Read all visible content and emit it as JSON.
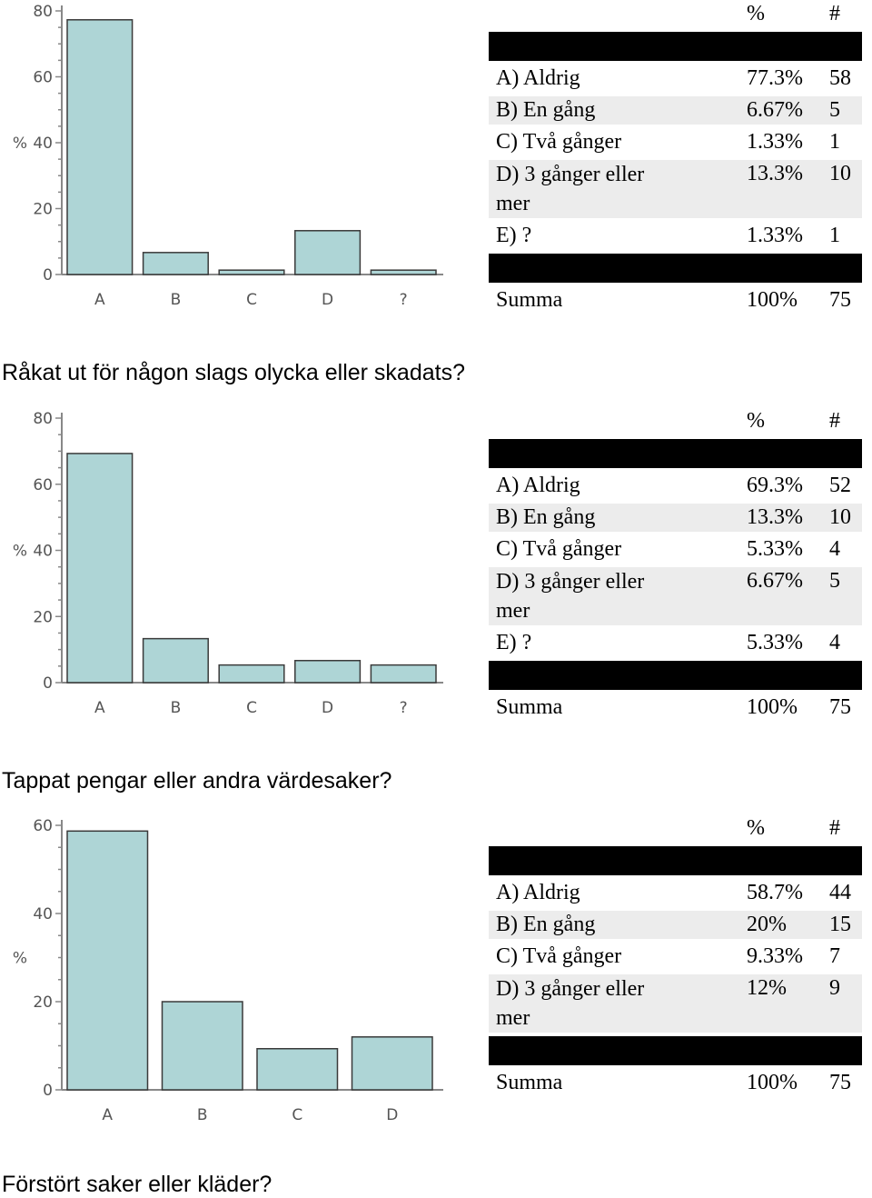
{
  "sections": [
    {
      "chart_data": {
        "type": "bar",
        "categories": [
          "A",
          "B",
          "C",
          "D",
          "?"
        ],
        "values": [
          77.3,
          6.67,
          1.33,
          13.3,
          1.33
        ],
        "ylabel": "%",
        "ylim": [
          0,
          80
        ],
        "yticks": [
          0,
          20,
          40,
          60,
          80
        ],
        "bar_color": "#aed5d6"
      },
      "table": {
        "header": {
          "pct": "%",
          "count": "#"
        },
        "rows": [
          {
            "label": "A) Aldrig",
            "pct": "77.3%",
            "count": "58"
          },
          {
            "label": "B) En gång",
            "pct": "6.67%",
            "count": "5"
          },
          {
            "label": "C) Två gånger",
            "pct": "1.33%",
            "count": "1"
          },
          {
            "label": "D) 3 gånger eller mer",
            "pct": "13.3%",
            "count": "10"
          },
          {
            "label": "E) ?",
            "pct": "1.33%",
            "count": "1"
          }
        ],
        "total": {
          "label": "Summa",
          "pct": "100%",
          "count": "75"
        }
      }
    },
    {
      "heading": "Råkat ut för någon slags olycka eller skadats?",
      "chart_data": {
        "type": "bar",
        "categories": [
          "A",
          "B",
          "C",
          "D",
          "?"
        ],
        "values": [
          69.3,
          13.3,
          5.33,
          6.67,
          5.33
        ],
        "ylabel": "%",
        "ylim": [
          0,
          80
        ],
        "yticks": [
          0,
          20,
          40,
          60,
          80
        ],
        "bar_color": "#aed5d6"
      },
      "table": {
        "header": {
          "pct": "%",
          "count": "#"
        },
        "rows": [
          {
            "label": "A) Aldrig",
            "pct": "69.3%",
            "count": "52"
          },
          {
            "label": "B) En gång",
            "pct": "13.3%",
            "count": "10"
          },
          {
            "label": "C) Två gånger",
            "pct": "5.33%",
            "count": "4"
          },
          {
            "label": "D) 3 gånger eller mer",
            "pct": "6.67%",
            "count": "5"
          },
          {
            "label": "E) ?",
            "pct": "5.33%",
            "count": "4"
          }
        ],
        "total": {
          "label": "Summa",
          "pct": "100%",
          "count": "75"
        }
      }
    },
    {
      "heading": "Tappat pengar eller andra värdesaker?",
      "chart_data": {
        "type": "bar",
        "categories": [
          "A",
          "B",
          "C",
          "D"
        ],
        "values": [
          58.7,
          20,
          9.33,
          12
        ],
        "ylabel": "%",
        "ylim": [
          0,
          60
        ],
        "yticks": [
          0,
          20,
          40,
          60
        ],
        "bar_color": "#aed5d6"
      },
      "table": {
        "header": {
          "pct": "%",
          "count": "#"
        },
        "rows": [
          {
            "label": "A) Aldrig",
            "pct": "58.7%",
            "count": "44"
          },
          {
            "label": "B) En gång",
            "pct": "20%",
            "count": "15"
          },
          {
            "label": "C) Två gånger",
            "pct": "9.33%",
            "count": "7"
          },
          {
            "label": "D) 3 gånger eller mer",
            "pct": "12%",
            "count": "9"
          }
        ],
        "total": {
          "label": "Summa",
          "pct": "100%",
          "count": "75"
        }
      }
    },
    {
      "heading": "Förstört saker eller kläder?"
    }
  ]
}
